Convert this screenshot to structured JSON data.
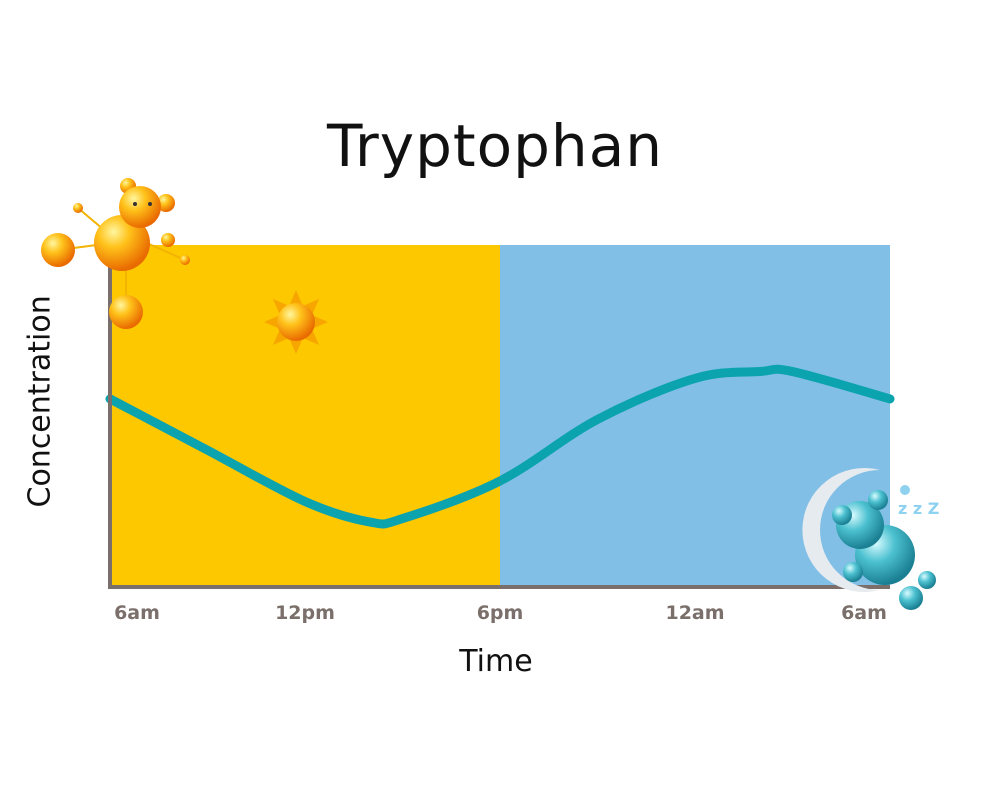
{
  "chart_data": {
    "type": "line",
    "title": "Tryptophan",
    "xlabel": "Time",
    "ylabel": "Concentration",
    "x_tick_labels": [
      "6am",
      "12pm",
      "6pm",
      "12am",
      "6am"
    ],
    "x_hours_since_start_of_axis_note": null,
    "series": [
      {
        "x": [
          "6am",
          "9am",
          "12pm",
          "2pm",
          "3pm",
          "6pm",
          "9pm",
          "12am",
          "2am",
          "3am",
          "6am"
        ],
        "values": [
          0.55,
          0.4,
          0.25,
          0.19,
          0.2,
          0.31,
          0.49,
          0.61,
          0.63,
          0.63,
          0.55
        ]
      }
    ],
    "ylim": [
      0,
      1
    ],
    "regions": [
      {
        "from": "6am",
        "to": "6pm",
        "meaning": "day",
        "icon": "sun-icon",
        "color": "#FDC800"
      },
      {
        "from": "6pm",
        "to": "6am",
        "meaning": "night",
        "icon": "sleeping-bear-moon-icon",
        "color": "#82BFE6"
      }
    ],
    "grid": false,
    "colors": {
      "line": "#0AA3AE",
      "axis": "#7a6f6a"
    }
  }
}
